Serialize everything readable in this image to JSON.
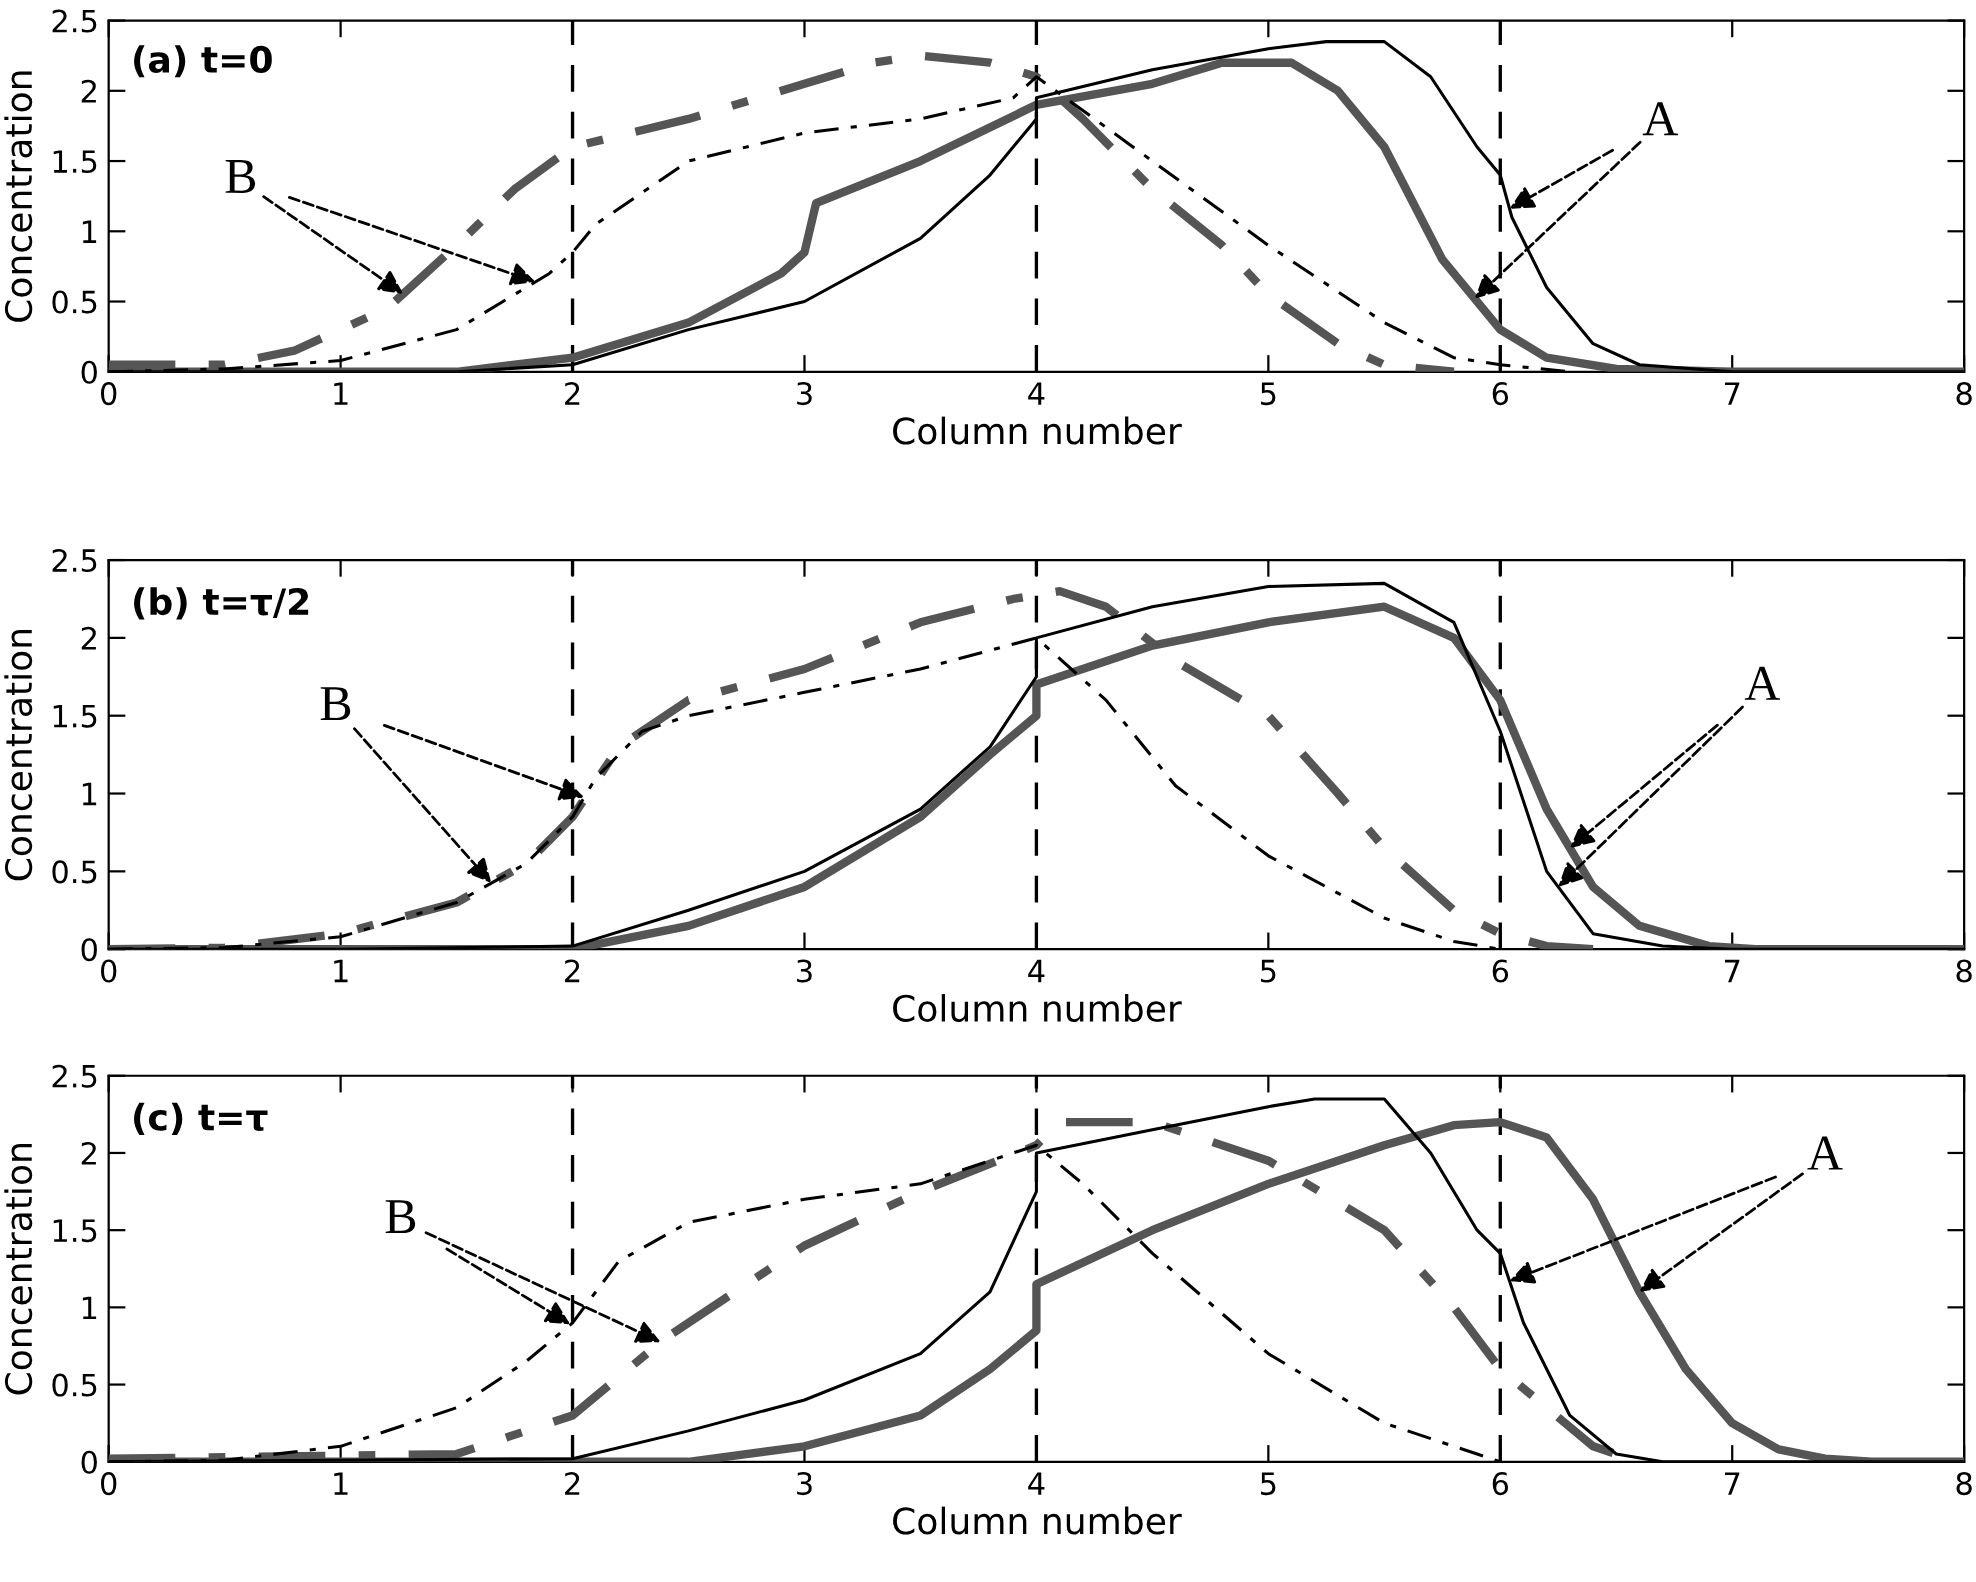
{
  "chart_data": [
    {
      "type": "line",
      "title": "(a) t=0",
      "xlabel": "Column number",
      "ylabel": "Concentration",
      "xlim": [
        0,
        8
      ],
      "xticks": [
        0,
        1,
        2,
        3,
        4,
        5,
        6,
        7,
        8
      ],
      "ylim": [
        0,
        2.5
      ],
      "yticks": [
        0,
        0.5,
        1,
        1.5,
        2,
        2.5
      ],
      "grid": false,
      "legend": false,
      "ref_lines": [
        {
          "axis": "x",
          "value": 2,
          "color": "#000000",
          "line_style": "dashed"
        },
        {
          "axis": "x",
          "value": 4,
          "color": "#000000",
          "line_style": "dashed"
        },
        {
          "axis": "x",
          "value": 6,
          "color": "#000000",
          "line_style": "dashed"
        }
      ],
      "annotations": [
        {
          "text": "B",
          "x": 1.84,
          "y": 0.64
        },
        {
          "text": "A",
          "x": 6.04,
          "y": 1.16
        }
      ],
      "series": [
        {
          "color": "#000000",
          "line_style": "solid",
          "x": [
            0,
            1,
            1.5,
            2,
            2.5,
            3,
            3.5,
            3.8,
            4,
            4,
            4.5,
            5,
            5.25,
            5.5,
            5.7,
            5.9,
            6,
            6.05,
            6.2,
            6.4,
            6.6,
            7,
            8
          ],
          "values": [
            0,
            0,
            0,
            0.05,
            0.3,
            0.5,
            0.95,
            1.4,
            1.8,
            1.95,
            2.15,
            2.3,
            2.35,
            2.35,
            2.1,
            1.6,
            1.4,
            1.1,
            0.6,
            0.2,
            0.05,
            0,
            0
          ]
        },
        {
          "color": "#555555",
          "line_style": "solid",
          "x": [
            0,
            1,
            1.5,
            2,
            2.5,
            2.9,
            3,
            3.05,
            3.5,
            4,
            4.5,
            4.8,
            5.1,
            5.3,
            5.5,
            5.75,
            6,
            6.2,
            6.5,
            7,
            8
          ],
          "values": [
            0,
            0,
            0,
            0.1,
            0.35,
            0.7,
            0.85,
            1.2,
            1.5,
            1.9,
            2.05,
            2.2,
            2.2,
            2,
            1.6,
            0.8,
            0.3,
            0.1,
            0.02,
            0,
            0
          ]
        },
        {
          "color": "#000000",
          "line_style": "dashdot",
          "x": [
            0,
            0.5,
            1,
            1.5,
            1.9,
            2,
            2.1,
            2.5,
            3,
            3.5,
            3.9,
            4,
            4.5,
            5,
            5.5,
            5.8,
            6,
            6.3
          ],
          "values": [
            0,
            0.02,
            0.08,
            0.3,
            0.7,
            0.85,
            1.05,
            1.5,
            1.7,
            1.8,
            1.95,
            2.1,
            1.5,
            0.9,
            0.35,
            0.1,
            0.05,
            0
          ]
        },
        {
          "color": "#555555",
          "line_style": "dashdot",
          "x": [
            0,
            0.5,
            0.8,
            1.2,
            1.5,
            1.75,
            2,
            2.5,
            3,
            3.3,
            3.5,
            3.8,
            4,
            4.2,
            4.5,
            4.8,
            5,
            5.3,
            5.5,
            5.8
          ],
          "values": [
            0.05,
            0.05,
            0.15,
            0.45,
            0.9,
            1.3,
            1.6,
            1.8,
            2.05,
            2.2,
            2.25,
            2.2,
            2.1,
            1.8,
            1.3,
            0.9,
            0.55,
            0.2,
            0.05,
            0
          ]
        }
      ]
    },
    {
      "type": "line",
      "title": "(b) t=τ/2",
      "xlabel": "Column number",
      "ylabel": "Concentration",
      "xlim": [
        0,
        8
      ],
      "xticks": [
        0,
        1,
        2,
        3,
        4,
        5,
        6,
        7,
        8
      ],
      "ylim": [
        0,
        2.5
      ],
      "yticks": [
        0,
        0.5,
        1,
        1.5,
        2,
        2.5
      ],
      "grid": false,
      "legend": false,
      "ref_lines": [
        {
          "axis": "x",
          "value": 2,
          "color": "#000000",
          "line_style": "dashed"
        },
        {
          "axis": "x",
          "value": 4,
          "color": "#000000",
          "line_style": "dashed"
        },
        {
          "axis": "x",
          "value": 6,
          "color": "#000000",
          "line_style": "dashed"
        }
      ],
      "annotations": [
        {
          "text": "B",
          "x": 2.05,
          "y": 0.975
        },
        {
          "text": "A",
          "x": 6.3,
          "y": 0.65
        }
      ],
      "series": [
        {
          "color": "#000000",
          "line_style": "solid",
          "x": [
            0,
            1,
            2,
            2.5,
            3,
            3.5,
            3.8,
            4,
            4,
            4.5,
            5,
            5.5,
            5.8,
            6,
            6.2,
            6.4,
            6.7,
            7,
            8
          ],
          "values": [
            0,
            0,
            0.02,
            0.25,
            0.5,
            0.9,
            1.3,
            1.75,
            2,
            2.2,
            2.33,
            2.35,
            2.1,
            1.4,
            0.5,
            0.1,
            0.02,
            0,
            0
          ]
        },
        {
          "color": "#555555",
          "line_style": "solid",
          "x": [
            0,
            1,
            2,
            2.5,
            3,
            3.5,
            3.8,
            4,
            4,
            4.5,
            5,
            5.5,
            5.8,
            6,
            6.2,
            6.4,
            6.6,
            6.9,
            7.1,
            8
          ],
          "values": [
            0,
            0,
            0,
            0.15,
            0.4,
            0.85,
            1.25,
            1.5,
            1.7,
            1.95,
            2.1,
            2.2,
            2,
            1.6,
            0.9,
            0.4,
            0.15,
            0.02,
            0,
            0
          ]
        },
        {
          "color": "#000000",
          "line_style": "dashdot",
          "x": [
            0,
            0.5,
            1,
            1.5,
            1.8,
            2,
            2.1,
            2.3,
            2.5,
            3,
            3.5,
            4,
            4.3,
            4.6,
            5,
            5.5,
            5.8,
            6
          ],
          "values": [
            0,
            0.01,
            0.08,
            0.3,
            0.55,
            0.85,
            1.1,
            1.4,
            1.5,
            1.65,
            1.8,
            2,
            1.6,
            1.05,
            0.6,
            0.2,
            0.05,
            0
          ]
        },
        {
          "color": "#555555",
          "line_style": "dashdot",
          "x": [
            0,
            0.5,
            1,
            1.5,
            1.8,
            2,
            2.2,
            2.5,
            3,
            3.5,
            3.9,
            4.1,
            4.3,
            4.6,
            5,
            5.3,
            5.5,
            5.8,
            6,
            6.2,
            6.4
          ],
          "values": [
            0,
            0.01,
            0.1,
            0.3,
            0.55,
            0.85,
            1.3,
            1.6,
            1.8,
            2.1,
            2.25,
            2.3,
            2.2,
            1.85,
            1.5,
            1,
            0.65,
            0.25,
            0.1,
            0.02,
            0
          ]
        }
      ]
    },
    {
      "type": "line",
      "title": "(c) t=τ",
      "xlabel": "Column number",
      "ylabel": "Concentration",
      "xlim": [
        0,
        8
      ],
      "xticks": [
        0,
        1,
        2,
        3,
        4,
        5,
        6,
        7,
        8
      ],
      "ylim": [
        0,
        2.5
      ],
      "yticks": [
        0,
        0.5,
        1,
        1.5,
        2,
        2.5
      ],
      "grid": false,
      "legend": false,
      "ref_lines": [
        {
          "axis": "x",
          "value": 2,
          "color": "#000000",
          "line_style": "dashed"
        },
        {
          "axis": "x",
          "value": 4,
          "color": "#000000",
          "line_style": "dashed"
        },
        {
          "axis": "x",
          "value": 6,
          "color": "#000000",
          "line_style": "dashed"
        }
      ],
      "annotations": [
        {
          "text": "B",
          "x": 1.99,
          "y": 0.89
        },
        {
          "text": "A",
          "x": 6.04,
          "y": 1.17
        }
      ],
      "series": [
        {
          "color": "#000000",
          "line_style": "solid",
          "x": [
            0,
            1,
            2,
            2.5,
            3,
            3.5,
            3.8,
            4,
            4,
            4.5,
            5,
            5.2,
            5.5,
            5.7,
            5.9,
            6,
            6.1,
            6.3,
            6.5,
            6.7,
            8
          ],
          "values": [
            0,
            0.01,
            0.02,
            0.2,
            0.4,
            0.7,
            1.1,
            1.75,
            2,
            2.15,
            2.3,
            2.35,
            2.35,
            2,
            1.5,
            1.35,
            0.9,
            0.3,
            0.05,
            0,
            0
          ]
        },
        {
          "color": "#555555",
          "line_style": "solid",
          "x": [
            0,
            1,
            2,
            2.5,
            3,
            3.5,
            3.8,
            4,
            4,
            4.5,
            5,
            5.5,
            5.8,
            6,
            6.2,
            6.4,
            6.6,
            6.8,
            7,
            7.2,
            7.4,
            7.6,
            8
          ],
          "values": [
            0,
            0,
            0,
            0,
            0.1,
            0.3,
            0.6,
            0.85,
            1.15,
            1.5,
            1.8,
            2.05,
            2.18,
            2.2,
            2.1,
            1.7,
            1.1,
            0.6,
            0.25,
            0.08,
            0.02,
            0,
            0
          ]
        },
        {
          "color": "#000000",
          "line_style": "dashdot",
          "x": [
            0,
            0.5,
            1,
            1.5,
            1.8,
            2,
            2.2,
            2.5,
            3,
            3.5,
            4,
            4.2,
            4.5,
            5,
            5.5,
            5.9,
            6
          ],
          "values": [
            0,
            0.01,
            0.1,
            0.35,
            0.65,
            0.9,
            1.3,
            1.55,
            1.7,
            1.8,
            2.05,
            1.8,
            1.35,
            0.7,
            0.25,
            0.05,
            0
          ]
        },
        {
          "color": "#555555",
          "line_style": "dashdot",
          "x": [
            0,
            1.5,
            2,
            2.4,
            2.5,
            3,
            3.5,
            4,
            4.1,
            4.5,
            5,
            5.5,
            5.8,
            6,
            6.2,
            6.4,
            6.6
          ],
          "values": [
            0.02,
            0.05,
            0.3,
            0.8,
            0.9,
            1.4,
            1.75,
            2.05,
            2.2,
            2.2,
            1.95,
            1.5,
            1,
            0.6,
            0.35,
            0.1,
            0
          ]
        }
      ]
    }
  ]
}
